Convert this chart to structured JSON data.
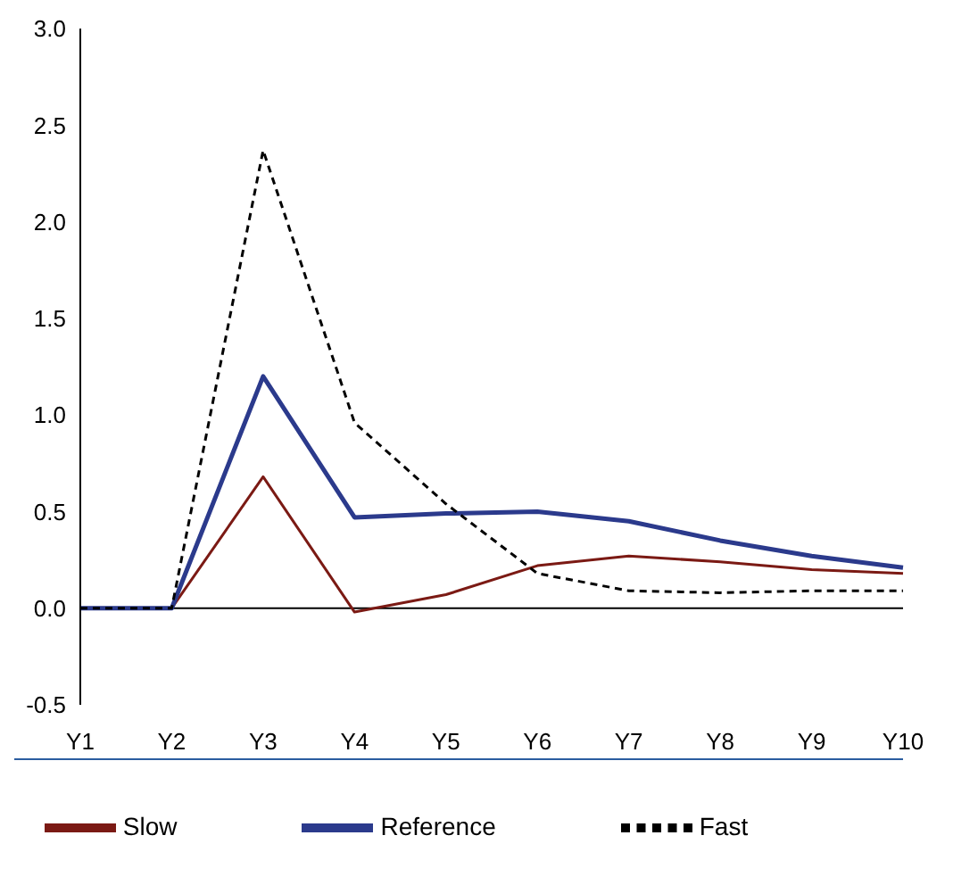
{
  "chart_data": {
    "type": "line",
    "categories": [
      "Y1",
      "Y2",
      "Y3",
      "Y4",
      "Y5",
      "Y6",
      "Y7",
      "Y8",
      "Y9",
      "Y10"
    ],
    "series": [
      {
        "name": "Slow",
        "color": "#7b1a14",
        "values": [
          0,
          0,
          0.68,
          -0.02,
          0.07,
          0.22,
          0.27,
          0.24,
          0.2,
          0.18
        ]
      },
      {
        "name": "Reference",
        "color": "#2b3a8c",
        "values": [
          0,
          0,
          1.2,
          0.47,
          0.49,
          0.5,
          0.45,
          0.35,
          0.27,
          0.21
        ]
      },
      {
        "name": "Fast",
        "color": "#000000",
        "line_style": "dashed",
        "values": [
          0,
          0,
          2.37,
          0.96,
          0.54,
          0.18,
          0.09,
          0.08,
          0.09,
          0.09
        ]
      }
    ],
    "ylim": [
      -0.5,
      3
    ],
    "yticks": [
      {
        "value": -0.5,
        "label": "-0.5"
      },
      {
        "value": 0,
        "label": "0.0"
      },
      {
        "value": 0.5,
        "label": "0.5"
      },
      {
        "value": 1,
        "label": "1.0"
      },
      {
        "value": 1.5,
        "label": "1.5"
      },
      {
        "value": 2,
        "label": "2.0"
      },
      {
        "value": 2.5,
        "label": "2.5"
      },
      {
        "value": 3,
        "label": "3.0"
      }
    ],
    "ref_lines": [
      {
        "axis": "y",
        "value": 0,
        "color": "#000000"
      }
    ],
    "grid": false,
    "legend": "bottom",
    "marker": "none"
  }
}
